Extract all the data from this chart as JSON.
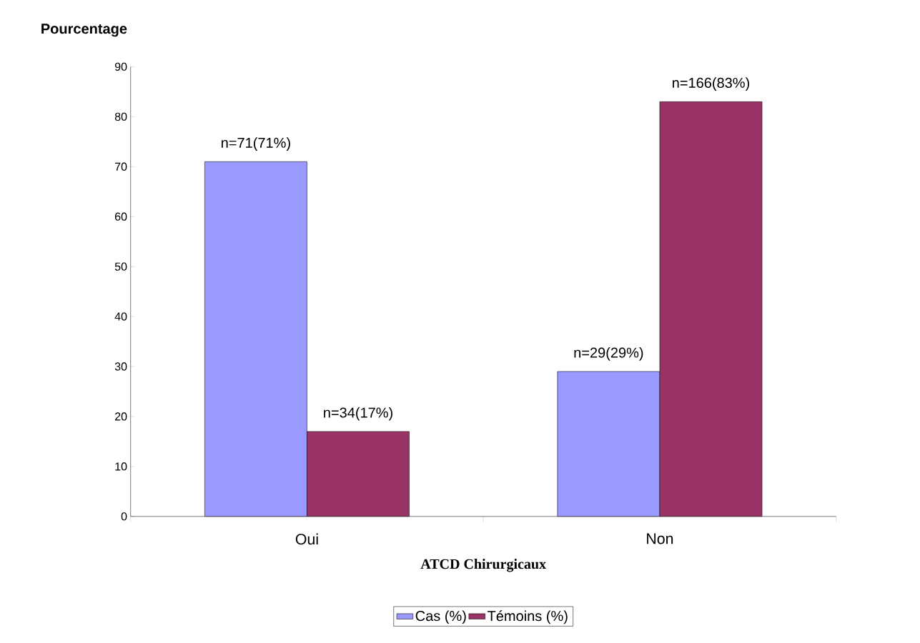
{
  "chart_data": {
    "type": "bar",
    "ylabel": "Pourcentage",
    "xlabel": "ATCD Chirurgicaux",
    "categories": [
      "Oui",
      "Non"
    ],
    "series": [
      {
        "name": "Cas (%)",
        "color": "#9999ff",
        "values": [
          71,
          29
        ],
        "value_labels": [
          "n=71(71%)",
          "n=29(29%)"
        ]
      },
      {
        "name": "Témoins (%)",
        "color": "#993366",
        "values": [
          17,
          83
        ],
        "value_labels": [
          "n=34(17%)",
          "n=166(83%)"
        ]
      }
    ],
    "ylim": [
      0,
      90
    ],
    "yticks": [
      0,
      10,
      20,
      30,
      40,
      50,
      60,
      70,
      80,
      90
    ],
    "legend": "bottom"
  }
}
